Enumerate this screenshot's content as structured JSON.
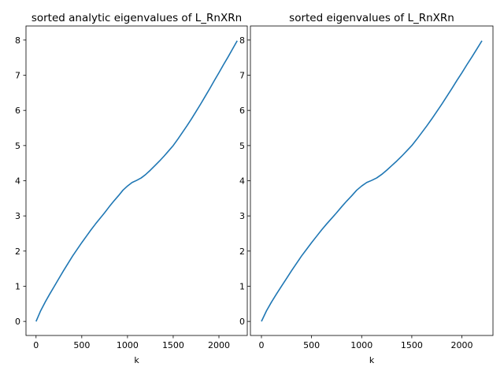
{
  "chart_data": [
    {
      "type": "line",
      "title": "sorted analytic eigenvalues of L_RnXRn",
      "xlabel": "k",
      "ylabel": "",
      "xlim": [
        -110,
        2310
      ],
      "ylim": [
        -0.4,
        8.4
      ],
      "xticks": [
        0,
        500,
        1000,
        1500,
        2000
      ],
      "yticks": [
        0,
        1,
        2,
        3,
        4,
        5,
        6,
        7,
        8
      ],
      "grid": false,
      "line_color": "#1f77b4",
      "series": [
        {
          "x": [
            0,
            50,
            100,
            150,
            200,
            250,
            300,
            350,
            400,
            450,
            500,
            550,
            600,
            650,
            700,
            750,
            800,
            850,
            900,
            950,
            1000,
            1050,
            1100,
            1150,
            1200,
            1250,
            1300,
            1350,
            1400,
            1450,
            1500,
            1550,
            1600,
            1650,
            1700,
            1750,
            1800,
            1850,
            1900,
            1950,
            2000,
            2050,
            2100,
            2150,
            2200
          ],
          "values": [
            0.0,
            0.3,
            0.55,
            0.78,
            1.0,
            1.22,
            1.44,
            1.65,
            1.86,
            2.05,
            2.24,
            2.42,
            2.6,
            2.77,
            2.93,
            3.09,
            3.26,
            3.42,
            3.57,
            3.73,
            3.85,
            3.95,
            4.01,
            4.08,
            4.18,
            4.3,
            4.43,
            4.56,
            4.7,
            4.85,
            5.0,
            5.18,
            5.37,
            5.56,
            5.76,
            5.97,
            6.18,
            6.4,
            6.62,
            6.85,
            7.07,
            7.3,
            7.52,
            7.75,
            7.98
          ]
        }
      ]
    },
    {
      "type": "line",
      "title": "sorted eigenvalues of L_RnXRn",
      "xlabel": "k",
      "ylabel": "",
      "xlim": [
        -110,
        2310
      ],
      "ylim": [
        -0.4,
        8.4
      ],
      "xticks": [
        0,
        500,
        1000,
        1500,
        2000
      ],
      "yticks": [
        0,
        1,
        2,
        3,
        4,
        5,
        6,
        7,
        8
      ],
      "grid": false,
      "line_color": "#1f77b4",
      "series": [
        {
          "x": [
            0,
            50,
            100,
            150,
            200,
            250,
            300,
            350,
            400,
            450,
            500,
            550,
            600,
            650,
            700,
            750,
            800,
            850,
            900,
            950,
            1000,
            1050,
            1100,
            1150,
            1200,
            1250,
            1300,
            1350,
            1400,
            1450,
            1500,
            1550,
            1600,
            1650,
            1700,
            1750,
            1800,
            1850,
            1900,
            1950,
            2000,
            2050,
            2100,
            2150,
            2200
          ],
          "values": [
            0.0,
            0.3,
            0.55,
            0.78,
            1.0,
            1.22,
            1.44,
            1.65,
            1.86,
            2.05,
            2.24,
            2.42,
            2.6,
            2.77,
            2.93,
            3.09,
            3.26,
            3.42,
            3.57,
            3.73,
            3.85,
            3.95,
            4.01,
            4.08,
            4.18,
            4.3,
            4.43,
            4.56,
            4.7,
            4.85,
            5.0,
            5.18,
            5.37,
            5.56,
            5.76,
            5.97,
            6.18,
            6.4,
            6.62,
            6.85,
            7.07,
            7.3,
            7.52,
            7.75,
            7.98
          ]
        }
      ]
    }
  ]
}
